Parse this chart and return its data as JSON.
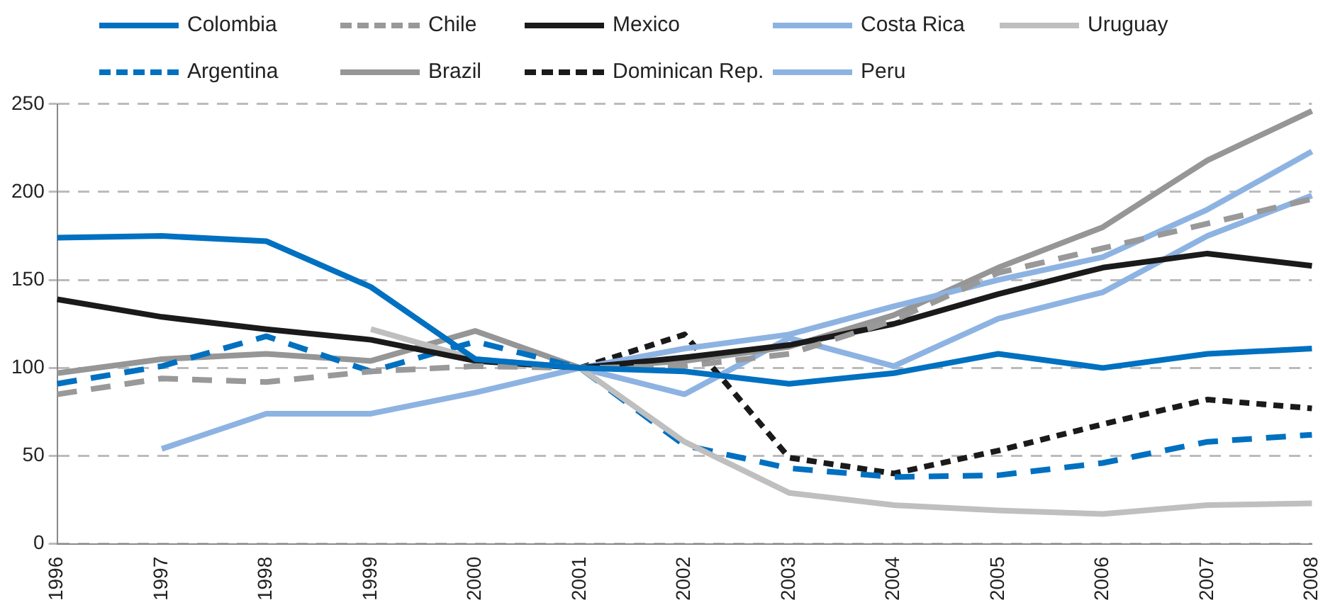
{
  "chart_data": {
    "type": "line",
    "categories": [
      "1996",
      "1997",
      "1998",
      "1999",
      "2000",
      "2001",
      "2002",
      "2003",
      "2004",
      "2005",
      "2006",
      "2007",
      "2008"
    ],
    "ylim": [
      0,
      250
    ],
    "yticks": [
      0,
      50,
      100,
      150,
      200,
      250
    ],
    "grid": "y",
    "legend": "top",
    "marker": "none",
    "series": [
      {
        "name": "Colombia",
        "color": "#0070c0",
        "line_style": "solid",
        "values": [
          174,
          175,
          172,
          146,
          105,
          100,
          98,
          91,
          97,
          108,
          100,
          108,
          111
        ]
      },
      {
        "name": "Chile",
        "color": "#999999",
        "line_style": "dashed",
        "values": [
          85,
          94,
          92,
          98,
          101,
          100,
          101,
          108,
          127,
          154,
          168,
          182,
          196
        ]
      },
      {
        "name": "Mexico",
        "color": "#1a1a1a",
        "line_style": "solid",
        "values": [
          139,
          129,
          122,
          116,
          104,
          100,
          106,
          113,
          125,
          142,
          157,
          165,
          158
        ]
      },
      {
        "name": "Costa Rica",
        "color": "#8db3e2",
        "line_style": "solid",
        "values": [
          null,
          54,
          74,
          74,
          86,
          100,
          111,
          119,
          135,
          150,
          163,
          190,
          223
        ]
      },
      {
        "name": "Uruguay",
        "color": "#bfbfbf",
        "line_style": "solid",
        "values": [
          null,
          null,
          null,
          122,
          105,
          100,
          58,
          29,
          22,
          19,
          17,
          22,
          23
        ]
      },
      {
        "name": "Argentina",
        "color": "#0070c0",
        "line_style": "dashed",
        "values": [
          91,
          101,
          118,
          98,
          115,
          100,
          56,
          43,
          38,
          39,
          46,
          58,
          62
        ]
      },
      {
        "name": "Brazil",
        "color": "#969696",
        "line_style": "solid",
        "values": [
          97,
          105,
          108,
          104,
          121,
          100,
          104,
          112,
          130,
          157,
          180,
          218,
          246
        ]
      },
      {
        "name": "Dominican Rep.",
        "color": "#1a1a1a",
        "line_style": "dotted",
        "values": [
          null,
          null,
          null,
          null,
          null,
          100,
          119,
          49,
          40,
          53,
          68,
          82,
          77
        ]
      },
      {
        "name": "Peru",
        "color": "#8db3e2",
        "line_style": "solid",
        "values": [
          null,
          null,
          null,
          null,
          null,
          100,
          85,
          117,
          101,
          128,
          143,
          175,
          198
        ]
      }
    ]
  }
}
